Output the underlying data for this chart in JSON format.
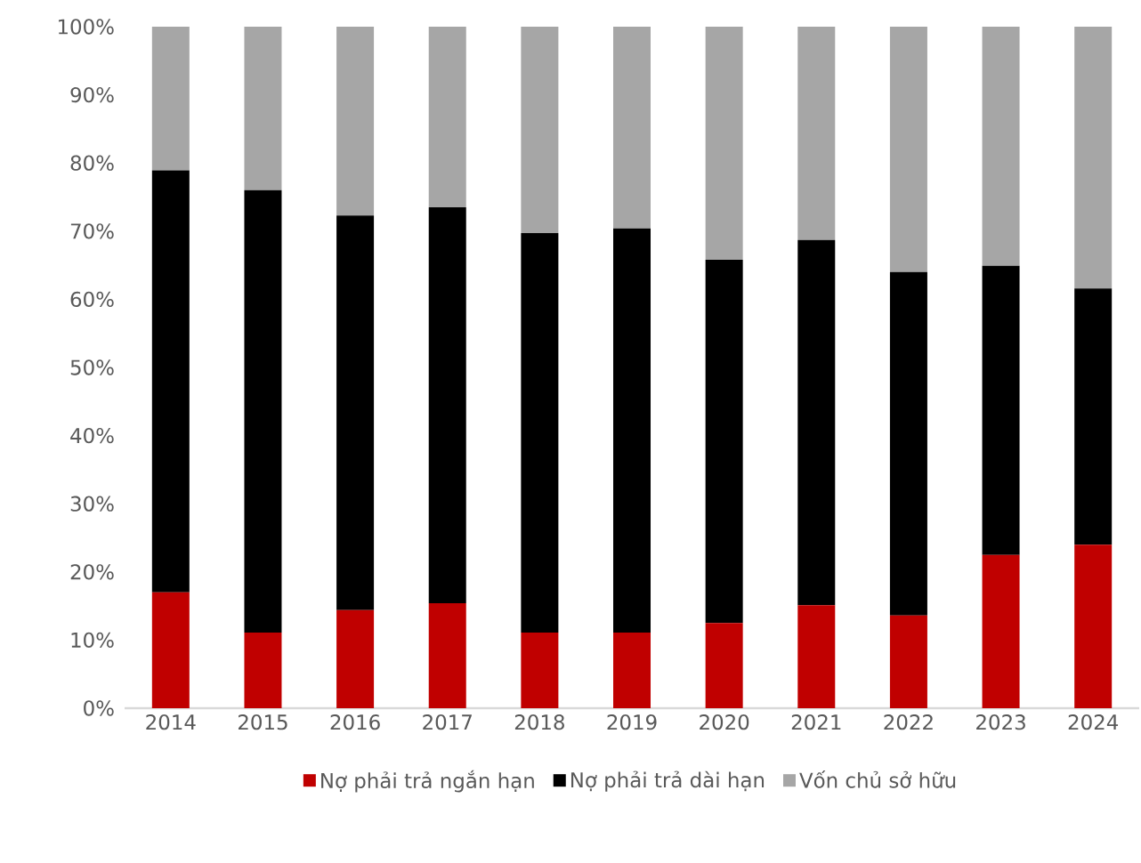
{
  "chart_data": {
    "type": "bar",
    "stacked": true,
    "categories": [
      "2014",
      "2015",
      "2016",
      "2017",
      "2018",
      "2019",
      "2020",
      "2021",
      "2022",
      "2023",
      "2024"
    ],
    "series": [
      {
        "name": "Nợ phải trả ngắn hạn",
        "color": "#c00000",
        "values": [
          17.0,
          11.1,
          14.4,
          15.4,
          11.1,
          11.1,
          12.5,
          15.1,
          13.6,
          22.5,
          24.0
        ]
      },
      {
        "name": "Nợ phải trả dài hạn",
        "color": "#000000",
        "values": [
          61.9,
          64.9,
          57.9,
          58.1,
          58.6,
          59.3,
          53.3,
          53.6,
          50.4,
          42.4,
          37.6
        ]
      },
      {
        "name": "Vốn chủ sở hữu",
        "color": "#a6a6a6",
        "values": [
          21.1,
          24.0,
          27.7,
          26.5,
          30.3,
          29.6,
          34.2,
          31.3,
          36.0,
          35.1,
          38.4
        ]
      }
    ],
    "ylim": [
      0,
      100
    ],
    "yticks": [
      {
        "value": 0,
        "label": "0%"
      },
      {
        "value": 10,
        "label": "10%"
      },
      {
        "value": 20,
        "label": "20%"
      },
      {
        "value": 30,
        "label": "30%"
      },
      {
        "value": 40,
        "label": "40%"
      },
      {
        "value": 50,
        "label": "50%"
      },
      {
        "value": 60,
        "label": "60%"
      },
      {
        "value": 70,
        "label": "70%"
      },
      {
        "value": 80,
        "label": "80%"
      },
      {
        "value": 90,
        "label": "90%"
      },
      {
        "value": 100,
        "label": "100%"
      }
    ],
    "legend": "bottom"
  }
}
